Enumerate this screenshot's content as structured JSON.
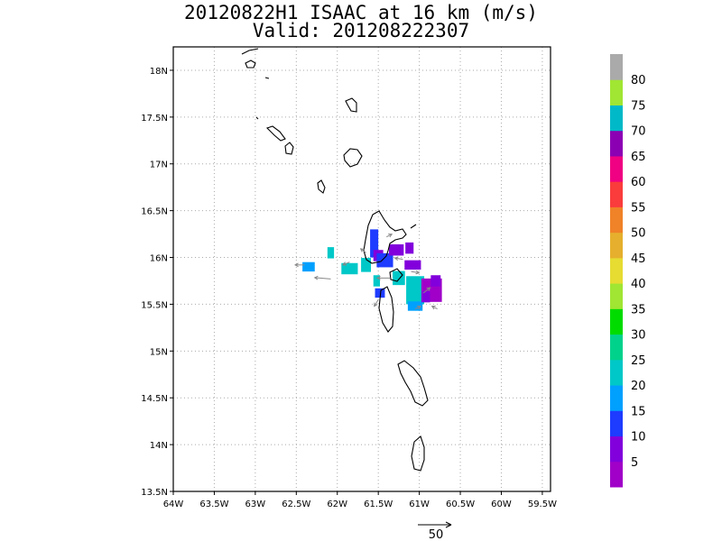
{
  "title_line1": "20120822H1 ISAAC at 16 km (m/s)",
  "title_line2": "Valid: 201208222307",
  "reference_vector_label": "50",
  "chart_data": {
    "type": "heatmap",
    "title": "20120822H1 ISAAC at 16 km (m/s)",
    "subtitle": "Valid: 201208222307",
    "xlim": [
      -64,
      -59.4
    ],
    "ylim": [
      13.5,
      18.25
    ],
    "x_ticks": [
      -64,
      -63.5,
      -63,
      -62.5,
      -62,
      -61.5,
      -61,
      -60.5,
      -60,
      -59.5
    ],
    "x_tick_labels": [
      "64W",
      "63.5W",
      "63W",
      "62.5W",
      "62W",
      "61.5W",
      "61W",
      "60.5W",
      "60W",
      "59.5W"
    ],
    "y_ticks": [
      13.5,
      14,
      14.5,
      15,
      15.5,
      16,
      16.5,
      17,
      17.5,
      18
    ],
    "y_tick_labels": [
      "13.5N",
      "14N",
      "14.5N",
      "15N",
      "15.5N",
      "16N",
      "16.5N",
      "17N",
      "17.5N",
      "18N"
    ],
    "grid": true,
    "colorbar": {
      "levels": [
        5,
        10,
        15,
        20,
        25,
        30,
        35,
        40,
        45,
        50,
        55,
        60,
        65,
        70,
        75,
        80
      ],
      "label_levels": [
        5,
        10,
        15,
        20,
        25,
        30,
        35,
        40,
        45,
        50,
        55,
        60,
        65,
        70,
        75,
        80
      ],
      "colors": [
        "#a000c8",
        "#8200dc",
        "#1e3cff",
        "#00a0ff",
        "#00c8c8",
        "#00d28c",
        "#00dc00",
        "#a0e632",
        "#e6dc32",
        "#e6af2d",
        "#f08228",
        "#fa3c3c",
        "#f00082",
        "#8c00b4",
        "#00b9c8",
        "#a0e632",
        "#aaaaaa"
      ]
    },
    "cells": [
      {
        "lon": -62.35,
        "lat": 15.9,
        "w": 0.15,
        "h": 0.1,
        "value": 18
      },
      {
        "lon": -62.08,
        "lat": 16.05,
        "w": 0.08,
        "h": 0.12,
        "value": 20
      },
      {
        "lon": -61.85,
        "lat": 15.88,
        "w": 0.2,
        "h": 0.12,
        "value": 24
      },
      {
        "lon": -61.65,
        "lat": 15.92,
        "w": 0.12,
        "h": 0.15,
        "value": 22
      },
      {
        "lon": -61.55,
        "lat": 16.15,
        "w": 0.1,
        "h": 0.3,
        "value": 12
      },
      {
        "lon": -61.5,
        "lat": 16.02,
        "w": 0.12,
        "h": 0.12,
        "value": 8
      },
      {
        "lon": -61.42,
        "lat": 15.97,
        "w": 0.2,
        "h": 0.15,
        "value": 14
      },
      {
        "lon": -61.28,
        "lat": 16.08,
        "w": 0.18,
        "h": 0.12,
        "value": 6
      },
      {
        "lon": -61.12,
        "lat": 16.1,
        "w": 0.1,
        "h": 0.12,
        "value": 5
      },
      {
        "lon": -61.08,
        "lat": 15.92,
        "w": 0.2,
        "h": 0.1,
        "value": 7
      },
      {
        "lon": -61.52,
        "lat": 15.75,
        "w": 0.08,
        "h": 0.12,
        "value": 20
      },
      {
        "lon": -61.48,
        "lat": 15.62,
        "w": 0.12,
        "h": 0.1,
        "value": 12
      },
      {
        "lon": -61.25,
        "lat": 15.78,
        "w": 0.15,
        "h": 0.15,
        "value": 22
      },
      {
        "lon": -61.05,
        "lat": 15.65,
        "w": 0.22,
        "h": 0.3,
        "value": 21
      },
      {
        "lon": -61.05,
        "lat": 15.48,
        "w": 0.18,
        "h": 0.1,
        "value": 19
      },
      {
        "lon": -60.85,
        "lat": 15.65,
        "w": 0.25,
        "h": 0.25,
        "value": 4
      },
      {
        "lon": -60.8,
        "lat": 15.75,
        "w": 0.12,
        "h": 0.12,
        "value": 6
      },
      {
        "lon": -60.92,
        "lat": 15.58,
        "w": 0.1,
        "h": 0.12,
        "value": 9
      }
    ],
    "vectors": [
      {
        "lon": -62.08,
        "lat": 15.77,
        "u": -24,
        "v": 2
      },
      {
        "lon": -62.4,
        "lat": 15.92,
        "u": -14,
        "v": 0
      },
      {
        "lon": -61.85,
        "lat": 15.95,
        "u": -10,
        "v": -4
      },
      {
        "lon": -61.65,
        "lat": 16.05,
        "u": -8,
        "v": 6
      },
      {
        "lon": -61.4,
        "lat": 16.22,
        "u": 8,
        "v": 4
      },
      {
        "lon": -61.2,
        "lat": 15.98,
        "u": -12,
        "v": 2
      },
      {
        "lon": -61.35,
        "lat": 15.78,
        "u": -20,
        "v": 0
      },
      {
        "lon": -61.1,
        "lat": 15.85,
        "u": 12,
        "v": -2
      },
      {
        "lon": -60.95,
        "lat": 15.62,
        "u": 10,
        "v": 8
      },
      {
        "lon": -60.78,
        "lat": 15.45,
        "u": -8,
        "v": 4
      },
      {
        "lon": -61.5,
        "lat": 15.55,
        "u": -6,
        "v": -10
      },
      {
        "lon": -61.05,
        "lat": 15.45,
        "u": 8,
        "v": 4
      }
    ],
    "reference_vector": {
      "magnitude": 50
    }
  }
}
